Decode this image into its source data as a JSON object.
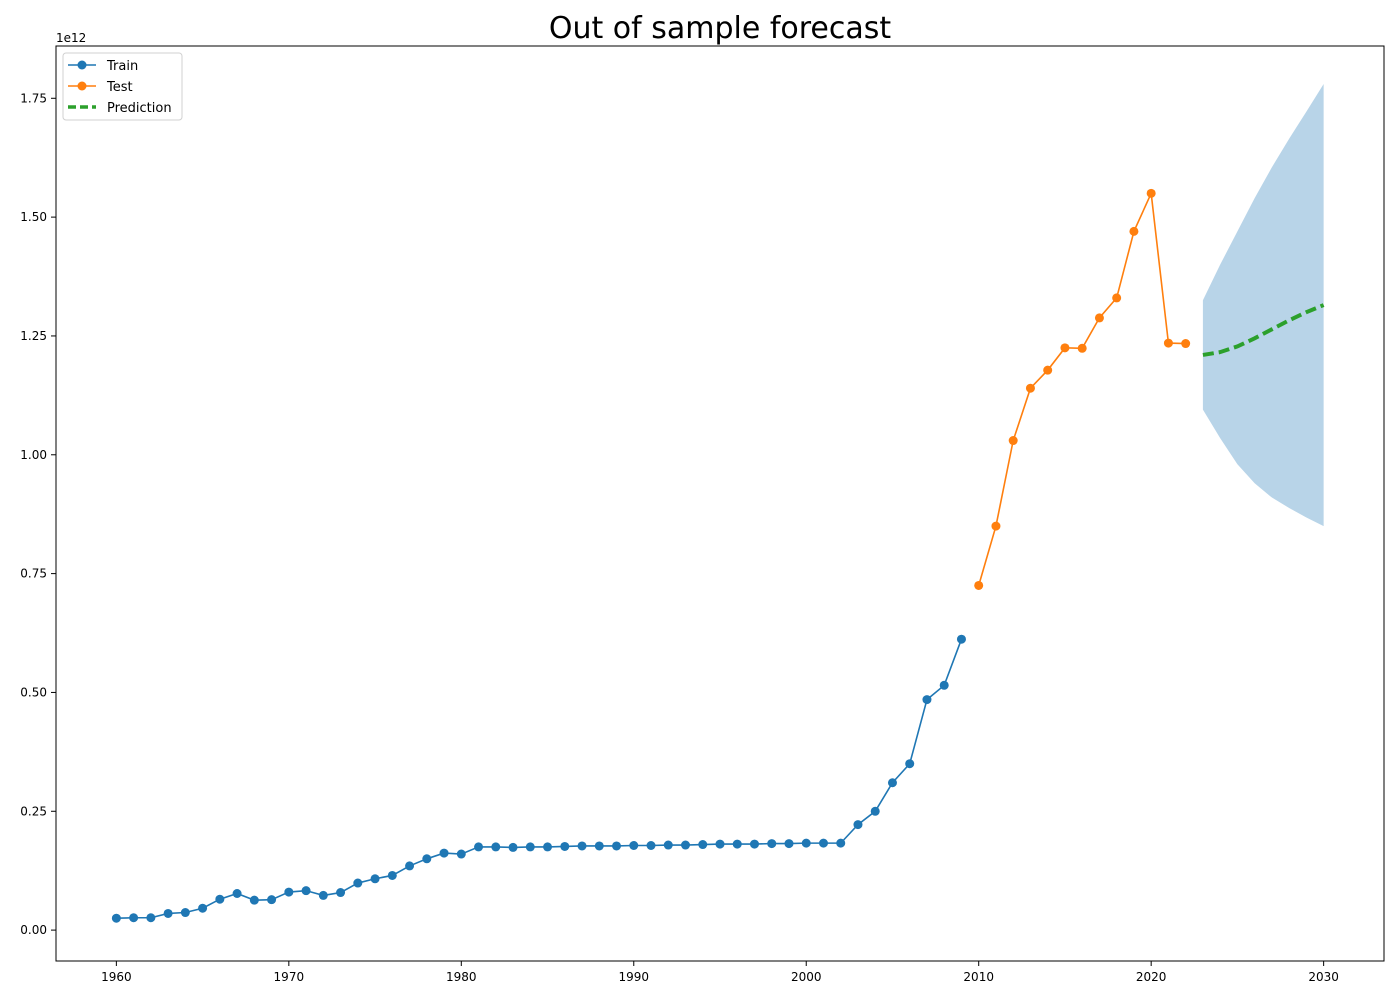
{
  "chart_data": {
    "type": "line",
    "title": "Out of sample forecast",
    "xlabel": "",
    "ylabel": "",
    "y_offset_label": "1e12",
    "y_scale": 1000000000000.0,
    "xlim": [
      1956.5,
      2033.5
    ],
    "ylim": [
      -0.065,
      1.86
    ],
    "xticks": [
      1960,
      1970,
      1980,
      1990,
      2000,
      2010,
      2020,
      2030
    ],
    "yticks": [
      0.0,
      0.25,
      0.5,
      0.75,
      1.0,
      1.25,
      1.5,
      1.75
    ],
    "ytick_labels": [
      "0.00",
      "0.25",
      "0.50",
      "0.75",
      "1.00",
      "1.25",
      "1.50",
      "1.75"
    ],
    "grid": false,
    "legend_position": "top-left",
    "legend": [
      "Train",
      "Test",
      "Prediction"
    ],
    "colors": {
      "train": "#1f77b4",
      "test": "#ff7f0e",
      "prediction": "#2ca02c",
      "interval": "#b8d4e8"
    },
    "series": [
      {
        "name": "Train",
        "style": "line-marker",
        "x": [
          1960,
          1961,
          1962,
          1963,
          1964,
          1965,
          1966,
          1967,
          1968,
          1969,
          1970,
          1971,
          1972,
          1973,
          1974,
          1975,
          1976,
          1977,
          1978,
          1979,
          1980,
          1981,
          1982,
          1983,
          1984,
          1985,
          1986,
          1987,
          1988,
          1989,
          1990,
          1991,
          1992,
          1993,
          1994,
          1995,
          1996,
          1997,
          1998,
          1999,
          2000,
          2001,
          2002,
          2003,
          2004,
          2005,
          2006,
          2007,
          2008,
          2009
        ],
        "y": [
          0.025,
          0.026,
          0.026,
          0.035,
          0.037,
          0.046,
          0.065,
          0.077,
          0.063,
          0.064,
          0.08,
          0.083,
          0.073,
          0.079,
          0.099,
          0.108,
          0.115,
          0.135,
          0.15,
          0.162,
          0.16,
          0.175,
          0.175,
          0.174,
          0.175,
          0.175,
          0.176,
          0.177,
          0.177,
          0.177,
          0.178,
          0.178,
          0.179,
          0.179,
          0.18,
          0.181,
          0.181,
          0.181,
          0.182,
          0.182,
          0.183,
          0.183,
          0.183,
          0.222,
          0.25,
          0.31,
          0.35,
          0.485,
          0.515,
          0.612
        ]
      },
      {
        "name": "Test",
        "style": "line-marker",
        "x": [
          2010,
          2011,
          2012,
          2013,
          2014,
          2015,
          2016,
          2017,
          2018,
          2019,
          2020,
          2021,
          2022
        ],
        "y": [
          0.725,
          0.85,
          1.03,
          1.14,
          1.178,
          1.225,
          1.224,
          1.288,
          1.33,
          1.47,
          1.55,
          1.235,
          1.234
        ]
      },
      {
        "name": "Prediction",
        "style": "dashed",
        "x": [
          2023,
          2024,
          2025,
          2026,
          2027,
          2028,
          2029,
          2030
        ],
        "y": [
          1.21,
          1.216,
          1.228,
          1.245,
          1.264,
          1.283,
          1.3,
          1.315
        ],
        "lower": [
          1.095,
          1.035,
          0.98,
          0.94,
          0.91,
          0.888,
          0.868,
          0.85
        ],
        "upper": [
          1.325,
          1.4,
          1.47,
          1.54,
          1.605,
          1.665,
          1.722,
          1.78
        ]
      }
    ]
  }
}
